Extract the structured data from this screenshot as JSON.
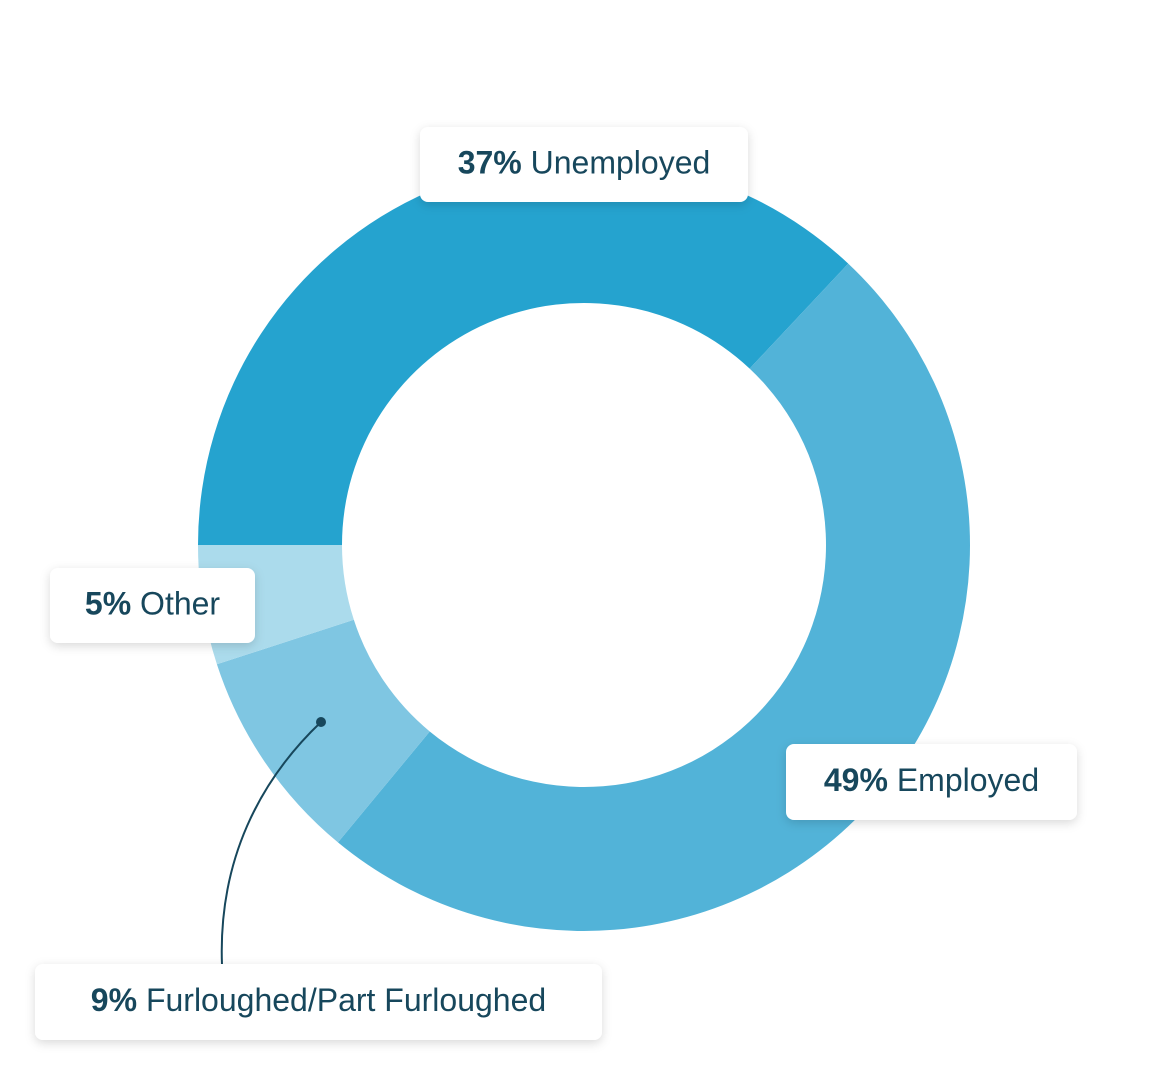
{
  "chart_data": {
    "type": "donut",
    "categories": [
      "Unemployed",
      "Employed",
      "Furloughed/Part Furloughed",
      "Other"
    ],
    "values": [
      37,
      49,
      9,
      5
    ],
    "value_labels": [
      "37%",
      "49%",
      "9%",
      "5%"
    ],
    "colors": [
      "#25a3cf",
      "#52b3d8",
      "#7fc6e2",
      "#abdbec"
    ]
  }
}
